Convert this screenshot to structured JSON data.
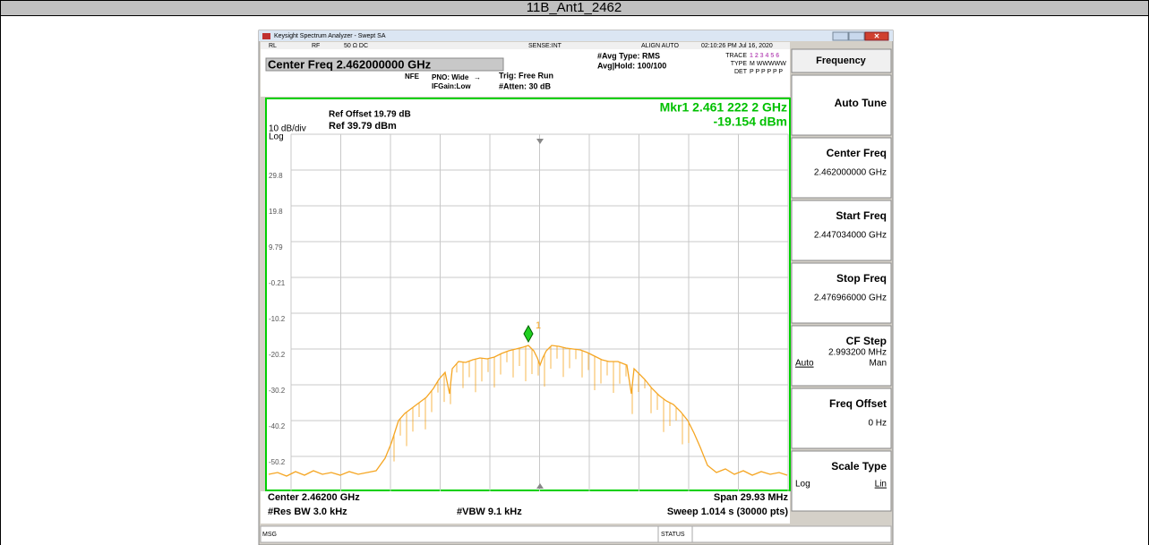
{
  "header": {
    "title": "11B_Ant1_2462"
  },
  "window": {
    "title": "Keysight Spectrum Analyzer - Swept SA"
  },
  "status_line": [
    "RL",
    "RF",
    "50 Ω  DC",
    "SENSE:INT",
    "ALIGN AUTO",
    "02:10:26 PM Jul 16, 2020"
  ],
  "settings": {
    "center_freq": "Center Freq 2.462000000 GHz",
    "nfe": "NFE",
    "pno": "PNO: Wide",
    "ifgain": "IFGain:Low",
    "trig": "Trig: Free Run",
    "atten": "#Atten: 30 dB",
    "avg_type": "#Avg Type: RMS",
    "avg_hold": "Avg|Hold: 100/100",
    "trace_label": "TRACE",
    "trace_numbers": "1 2 3 4 5 6",
    "type_label": "TYPE",
    "type_value": "M WWWWW",
    "det_label": "DET",
    "det_value": "P P P P P P"
  },
  "graph": {
    "ref_offset": "Ref Offset 19.79 dB",
    "ref_level": "Ref 39.79 dBm",
    "scale": "10 dB/div",
    "scale_type": "Log",
    "marker_freq": "Mkr1 2.461 222 2 GHz",
    "marker_level": "-19.154 dBm",
    "marker_number": "1",
    "y_labels": [
      "29.8",
      "19.8",
      "9.79",
      "-0.21",
      "-10.2",
      "-20.2",
      "-30.2",
      "-40.2",
      "-50.2"
    ]
  },
  "footer": {
    "center": "Center 2.46200 GHz",
    "span": "Span 29.93 MHz",
    "res_bw": "#Res BW 3.0 kHz",
    "vbw": "#VBW 9.1 kHz",
    "sweep": "Sweep  1.014 s (30000 pts)"
  },
  "status_bar": {
    "msg": "MSG",
    "status": "STATUS"
  },
  "softkeys": {
    "menu": "Frequency",
    "keys": [
      {
        "label": "Auto Tune"
      },
      {
        "label": "Center Freq",
        "value": "2.462000000 GHz"
      },
      {
        "label": "Start Freq",
        "value": "2.447034000 GHz"
      },
      {
        "label": "Stop Freq",
        "value": "2.476966000 GHz"
      },
      {
        "label": "CF Step",
        "value": "2.993200 MHz",
        "options": [
          "Auto",
          "Man"
        ]
      },
      {
        "label": "Freq Offset",
        "value": "0 Hz"
      },
      {
        "label": "Scale Type",
        "options": [
          "Log",
          "Lin"
        ]
      }
    ]
  }
}
